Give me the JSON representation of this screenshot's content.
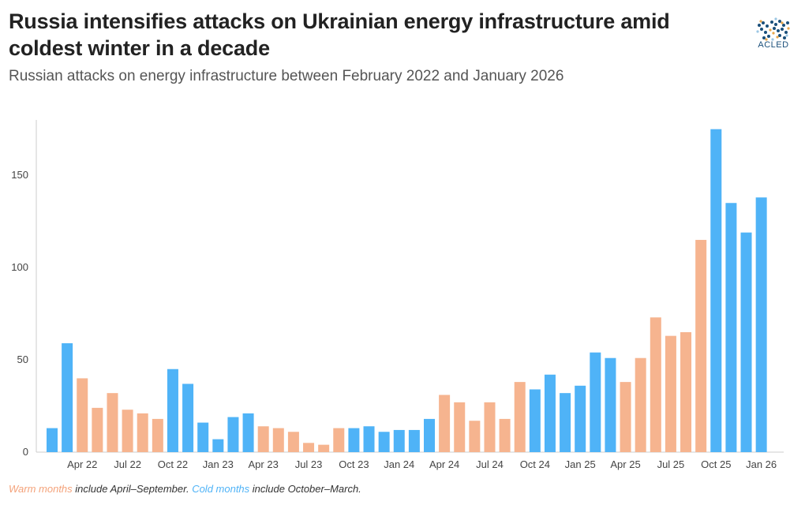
{
  "title": "Russia intensifies attacks on Ukrainian energy infrastructure amid coldest winter in a decade",
  "subtitle": "Russian attacks on energy infrastructure between February 2022 and January 2026",
  "logo": {
    "text": "ACLED",
    "icon": "acled-world-map-logo"
  },
  "footnote": {
    "warm_label": "Warm months",
    "warm_text": " include April–September. ",
    "cold_label": "Cold months",
    "cold_text": " include October–March."
  },
  "colors": {
    "warm": "#f6b48f",
    "cold": "#4fb3f7",
    "axis": "#cccccc"
  },
  "chart_data": {
    "type": "bar",
    "title": "",
    "xlabel": "",
    "ylabel": "",
    "ylim": [
      0,
      180
    ],
    "yticks": [
      0,
      50,
      100,
      150
    ],
    "grid": false,
    "categories": [
      "Feb 22",
      "Mar 22",
      "Apr 22",
      "May 22",
      "Jun 22",
      "Jul 22",
      "Aug 22",
      "Sep 22",
      "Oct 22",
      "Nov 22",
      "Dec 22",
      "Jan 23",
      "Feb 23",
      "Mar 23",
      "Apr 23",
      "May 23",
      "Jun 23",
      "Jul 23",
      "Aug 23",
      "Sep 23",
      "Oct 23",
      "Nov 23",
      "Dec 23",
      "Jan 24",
      "Feb 24",
      "Mar 24",
      "Apr 24",
      "May 24",
      "Jun 24",
      "Jul 24",
      "Aug 24",
      "Sep 24",
      "Oct 24",
      "Nov 24",
      "Dec 24",
      "Jan 25",
      "Feb 25",
      "Mar 25",
      "Apr 25",
      "May 25",
      "Jun 25",
      "Jul 25",
      "Aug 25",
      "Sep 25",
      "Oct 25",
      "Nov 25",
      "Dec 25",
      "Jan 26"
    ],
    "values": [
      13,
      59,
      40,
      24,
      32,
      23,
      21,
      18,
      45,
      37,
      16,
      7,
      19,
      21,
      14,
      13,
      11,
      5,
      4,
      13,
      13,
      14,
      11,
      12,
      12,
      18,
      31,
      27,
      17,
      27,
      18,
      38,
      34,
      42,
      32,
      36,
      54,
      51,
      38,
      51,
      73,
      63,
      65,
      115,
      175,
      135,
      119,
      138
    ],
    "season": [
      "cold",
      "cold",
      "warm",
      "warm",
      "warm",
      "warm",
      "warm",
      "warm",
      "cold",
      "cold",
      "cold",
      "cold",
      "cold",
      "cold",
      "warm",
      "warm",
      "warm",
      "warm",
      "warm",
      "warm",
      "cold",
      "cold",
      "cold",
      "cold",
      "cold",
      "cold",
      "warm",
      "warm",
      "warm",
      "warm",
      "warm",
      "warm",
      "cold",
      "cold",
      "cold",
      "cold",
      "cold",
      "cold",
      "warm",
      "warm",
      "warm",
      "warm",
      "warm",
      "warm",
      "cold",
      "cold",
      "cold",
      "cold"
    ],
    "xtick_labels": [
      "Apr 22",
      "Jul 22",
      "Oct 22",
      "Jan 23",
      "Apr 23",
      "Jul 23",
      "Oct 23",
      "Jan 24",
      "Apr 24",
      "Jul 24",
      "Oct 24",
      "Jan 25",
      "Apr 25",
      "Jul 25",
      "Oct 25",
      "Jan 26"
    ],
    "xtick_categories": [
      "Apr 22",
      "Jul 22",
      "Oct 22",
      "Jan 23",
      "Apr 23",
      "Jul 23",
      "Oct 23",
      "Jan 24",
      "Apr 24",
      "Jul 24",
      "Oct 24",
      "Jan 25",
      "Apr 25",
      "Jul 25",
      "Oct 25",
      "Jan 26"
    ]
  }
}
